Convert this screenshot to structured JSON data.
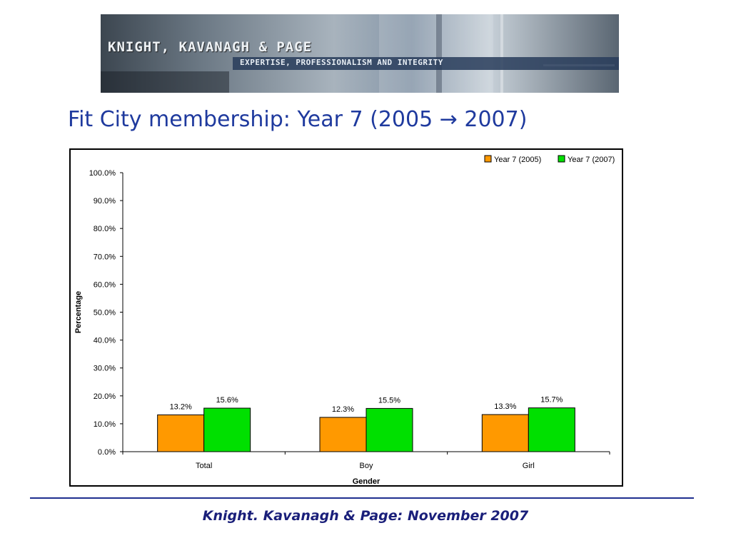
{
  "banner": {
    "brand": "KNIGHT, KAVANAGH & PAGE",
    "tagline": "EXPERTISE, PROFESSIONALISM AND INTEGRITY"
  },
  "slide_title": "Fit City membership: Year 7 (2005 → 2007)",
  "footer": "Knight. Kavanagh & Page: November 2007",
  "colors": {
    "series_2005": "#ff9900",
    "series_2007": "#00e000",
    "title": "#1f3a9e",
    "rule": "#1f2f8f"
  },
  "chart_data": {
    "type": "bar",
    "categories": [
      "Total",
      "Boy",
      "Girl"
    ],
    "series": [
      {
        "name": "Year 7 (2005)",
        "values": [
          13.2,
          12.3,
          13.3
        ],
        "labels": [
          "13.2%",
          "12.3%",
          "13.3%"
        ]
      },
      {
        "name": "Year 7 (2007)",
        "values": [
          15.6,
          15.5,
          15.7
        ],
        "labels": [
          "15.6%",
          "15.5%",
          "15.7%"
        ]
      }
    ],
    "xlabel": "Gender",
    "ylabel": "Percentage",
    "ylim": [
      0,
      100
    ],
    "yticks": [
      "0.0%",
      "10.0%",
      "20.0%",
      "30.0%",
      "40.0%",
      "50.0%",
      "60.0%",
      "70.0%",
      "80.0%",
      "90.0%",
      "100.0%"
    ],
    "legend_position": "top-right",
    "grid": false
  }
}
